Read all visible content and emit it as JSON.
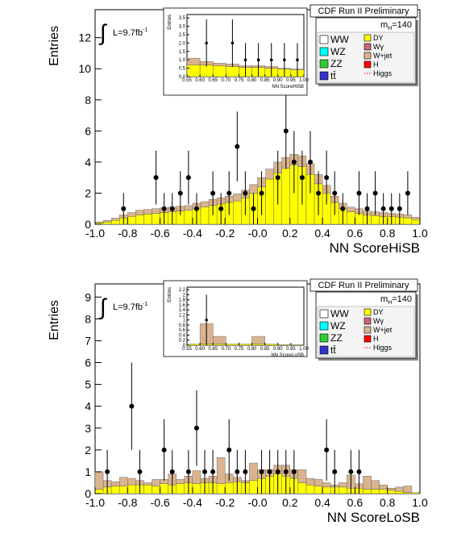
{
  "chart_data": [
    {
      "type": "histogram",
      "title": "CDF Run II Preliminary",
      "luminosity": "L=9.7fb",
      "luminosity_exponent": "-1",
      "mass_symbol": "m",
      "mass_subscript": "H",
      "mass_value": "=140",
      "xlabel": "NN ScoreHiSB",
      "ylabel": "Entries",
      "bins": [
        -1,
        -0.95,
        -0.9,
        -0.85,
        -0.8,
        -0.75,
        -0.7,
        -0.65,
        -0.6,
        -0.55,
        -0.5,
        -0.45,
        -0.4,
        -0.35,
        -0.3,
        -0.25,
        -0.2,
        -0.15,
        -0.1,
        -0.05,
        0,
        0.05,
        0.1,
        0.15,
        0.2,
        0.25,
        0.3,
        0.35,
        0.4,
        0.45,
        0.5,
        0.55,
        0.6,
        0.65,
        0.7,
        0.75,
        0.8,
        0.85,
        0.9,
        0.95,
        1
      ],
      "series": [
        {
          "name": "WW",
          "color": "#ffffff"
        },
        {
          "name": "WZ",
          "color": "#00ffff"
        },
        {
          "name": "ZZ",
          "color": "#33cc33"
        },
        {
          "name": "tt̄",
          "color": "#3333cc"
        },
        {
          "name": "DY",
          "color": "#ffff00",
          "values": [
            0.1,
            0.15,
            0.25,
            0.4,
            0.5,
            0.6,
            0.65,
            0.7,
            0.75,
            0.8,
            0.85,
            0.9,
            1.0,
            1.1,
            1.2,
            1.3,
            1.4,
            1.5,
            1.7,
            2.0,
            2.4,
            2.9,
            3.3,
            3.6,
            3.8,
            3.7,
            3.2,
            2.6,
            2.0,
            1.4,
            1.0,
            0.8,
            0.7,
            0.6,
            0.55,
            0.5,
            0.5,
            0.45,
            0.4,
            0.3
          ]
        },
        {
          "name": "Wγ",
          "color": "#cc6677"
        },
        {
          "name": "W+jet",
          "color": "#d9b48f",
          "values": [
            0.05,
            0.1,
            0.15,
            0.2,
            0.25,
            0.3,
            0.3,
            0.3,
            0.3,
            0.3,
            0.3,
            0.3,
            0.35,
            0.35,
            0.4,
            0.4,
            0.4,
            0.45,
            0.5,
            0.55,
            0.6,
            0.65,
            0.7,
            0.7,
            0.7,
            0.7,
            0.7,
            0.6,
            0.5,
            0.4,
            0.35,
            0.3,
            0.3,
            0.25,
            0.25,
            0.25,
            0.2,
            0.2,
            0.2,
            0.15
          ]
        },
        {
          "name": "H",
          "color": "#ff0000"
        },
        {
          "name": "Higgs",
          "color": "#ff0000"
        }
      ],
      "data": {
        "x": [
          -0.825,
          -0.625,
          -0.575,
          -0.525,
          -0.475,
          -0.425,
          -0.375,
          -0.275,
          -0.225,
          -0.175,
          -0.125,
          -0.075,
          -0.025,
          0.025,
          0.125,
          0.175,
          0.225,
          0.275,
          0.325,
          0.375,
          0.425,
          0.475,
          0.525,
          0.625,
          0.675,
          0.725,
          0.775,
          0.825,
          0.875,
          0.925
        ],
        "values": [
          1,
          3,
          1,
          1,
          2,
          3,
          1,
          2,
          1,
          2,
          5,
          2,
          1,
          2,
          3,
          6,
          4,
          3,
          4,
          2,
          3,
          2,
          1,
          2,
          1,
          2,
          1,
          1,
          1,
          2
        ],
        "errors": [
          1,
          1.73,
          1,
          1,
          1.41,
          1.73,
          1,
          1.41,
          1,
          1.41,
          2.24,
          1.41,
          1,
          1.41,
          1.73,
          2.45,
          2,
          1.73,
          2,
          1.41,
          1.73,
          1.41,
          1,
          1.41,
          1,
          1.41,
          1,
          1,
          1,
          1.41
        ]
      },
      "xlim": [
        -1,
        1
      ],
      "ylim": [
        0,
        13.8
      ],
      "xticks": [
        {
          "value": -1,
          "label": "-1.0"
        },
        -0.8,
        -0.6,
        -0.4,
        -0.2,
        {
          "value": 0,
          "label": "-0.0"
        },
        0.2,
        0.4,
        0.6,
        0.8,
        {
          "value": 1,
          "label": "1.0"
        }
      ],
      "yticks": [
        0,
        2,
        4,
        6,
        8,
        10,
        12
      ]
    },
    {
      "type": "histogram",
      "xlabel": "NN ScoreHiSB",
      "ylabel": "Entries",
      "bins": [
        0.55,
        0.6,
        0.65,
        0.7,
        0.75,
        0.8,
        0.85,
        0.9,
        0.95,
        1
      ],
      "series": [
        {
          "color": "#ffff00",
          "values": [
            0.7,
            0.7,
            0.65,
            0.6,
            0.55,
            0.55,
            0.5,
            0.45,
            0.4
          ]
        },
        {
          "color": "#d9b48f",
          "values": [
            0.4,
            0.2,
            0.15,
            0.15,
            0.1,
            0.1,
            0.1,
            0.05,
            0.05
          ]
        }
      ],
      "data": {
        "x": [
          0.625,
          0.725,
          0.775,
          0.825,
          0.875,
          0.925,
          0.975
        ],
        "values": [
          2,
          2,
          1,
          1,
          1,
          1,
          1
        ],
        "errors": [
          1.41,
          1.41,
          1,
          1,
          1,
          1,
          1
        ]
      },
      "xlim": [
        0.55,
        1
      ],
      "ylim": [
        0,
        3.7
      ],
      "xticks": [
        0.55,
        {
          "value": 0.6,
          "label": "0.60"
        },
        0.65,
        {
          "value": 0.7,
          "label": "0.70"
        },
        0.75,
        {
          "value": 0.8,
          "label": "0.80"
        },
        0.85,
        {
          "value": 0.9,
          "label": "0.90"
        },
        0.95,
        {
          "value": 1,
          "label": "1.00"
        }
      ],
      "yticks": [
        {
          "value": 0,
          "label": "0.0"
        },
        0.5,
        {
          "value": 1,
          "label": "1.0"
        },
        1.5,
        {
          "value": 2,
          "label": "2.0"
        },
        2.5,
        {
          "value": 3,
          "label": "3.0"
        },
        3.5
      ]
    },
    {
      "type": "histogram",
      "title": "CDF Run II Preliminary",
      "luminosity": "L=9.7fb",
      "luminosity_exponent": "-1",
      "mass_symbol": "m",
      "mass_subscript": "H",
      "mass_value": "=140",
      "xlabel": "NN ScoreLoSB",
      "ylabel": "Entries",
      "bins": [
        -1,
        -0.95,
        -0.9,
        -0.85,
        -0.8,
        -0.75,
        -0.7,
        -0.65,
        -0.6,
        -0.55,
        -0.5,
        -0.45,
        -0.4,
        -0.35,
        -0.3,
        -0.25,
        -0.2,
        -0.15,
        -0.1,
        -0.05,
        0,
        0.05,
        0.1,
        0.15,
        0.2,
        0.25,
        0.3,
        0.35,
        0.4,
        0.45,
        0.5,
        0.55,
        0.6,
        0.65,
        0.7,
        0.75,
        0.8,
        0.85,
        0.9,
        0.95,
        1
      ],
      "series": [
        {
          "name": "WW",
          "color": "#ffffff"
        },
        {
          "name": "WZ",
          "color": "#00ffff"
        },
        {
          "name": "ZZ",
          "color": "#33cc33"
        },
        {
          "name": "tt̄",
          "color": "#3333cc"
        },
        {
          "name": "DY",
          "color": "#ffff00",
          "values": [
            0.2,
            0.3,
            0.35,
            0.35,
            0.4,
            0.4,
            0.4,
            0.35,
            0.45,
            0.4,
            0.45,
            0.5,
            0.45,
            0.5,
            0.5,
            0.45,
            0.5,
            0.55,
            0.5,
            0.6,
            0.7,
            0.8,
            0.9,
            0.8,
            0.7,
            0.5,
            0.4,
            0.35,
            0.3,
            0.3,
            0.3,
            0.25,
            0.25,
            0.2,
            0.2,
            0.2,
            0.15,
            0.1,
            0.05,
            0.05
          ]
        },
        {
          "name": "Wγ",
          "color": "#cc6677"
        },
        {
          "name": "W+jet",
          "color": "#d9b48f",
          "values": [
            0.8,
            0.3,
            0.2,
            0.4,
            0.3,
            0.2,
            0.1,
            0.3,
            0.2,
            0.5,
            0.2,
            0.3,
            0.6,
            0.2,
            0.3,
            1.2,
            0.4,
            0.2,
            0.1,
            0.8,
            0.4,
            0.3,
            0.4,
            0.5,
            0.4,
            0.6,
            0.3,
            0.3,
            0.2,
            0.1,
            0.2,
            0.6,
            0.2,
            0.6,
            0.4,
            0.2,
            0.1,
            0.2,
            0.3,
            0
          ]
        },
        {
          "name": "H",
          "color": "#ff0000"
        },
        {
          "name": "Higgs",
          "color": "#ff0000"
        }
      ],
      "data": {
        "x": [
          -0.925,
          -0.775,
          -0.725,
          -0.575,
          -0.525,
          -0.425,
          -0.375,
          -0.325,
          -0.275,
          -0.175,
          -0.125,
          -0.075,
          0.025,
          0.075,
          0.125,
          0.175,
          0.225,
          0.425,
          0.475,
          0.575,
          0.625
        ],
        "values": [
          1,
          4,
          1,
          2,
          1,
          1,
          3,
          1,
          1,
          2,
          1,
          1,
          1,
          1,
          1,
          1,
          1,
          2,
          1,
          1,
          1
        ],
        "errors": [
          1,
          2,
          1,
          1.41,
          1,
          1,
          1.73,
          1,
          1,
          1.41,
          1,
          1,
          1,
          1,
          1,
          1,
          1,
          1.41,
          1,
          1,
          1
        ]
      },
      "xlim": [
        -1,
        1
      ],
      "ylim": [
        0,
        9.6
      ],
      "xticks": [
        {
          "value": -1,
          "label": "-1.0"
        },
        -0.8,
        -0.6,
        -0.4,
        -0.2,
        {
          "value": 0,
          "label": "-0.0"
        },
        0.2,
        0.4,
        0.6,
        0.8,
        {
          "value": 1,
          "label": "1.0"
        }
      ],
      "yticks": [
        0,
        1,
        2,
        3,
        4,
        5,
        6,
        7,
        8,
        9
      ]
    },
    {
      "type": "histogram",
      "xlabel": "NN ScoreLoSB",
      "ylabel": "Entries",
      "bins": [
        0.55,
        0.6,
        0.65,
        0.7,
        0.75,
        0.8,
        0.85,
        0.9,
        0.95,
        1
      ],
      "series": [
        {
          "color": "#ffff00",
          "values": [
            0.05,
            0.05,
            0.05,
            0.05,
            0.05,
            0.05,
            0.05,
            0.02,
            0.02
          ]
        },
        {
          "color": "#d9b48f",
          "values": [
            0,
            0.8,
            0.3,
            0,
            0,
            0.3,
            0,
            0,
            0
          ]
        }
      ],
      "data": {
        "x": [
          0.625
        ],
        "values": [
          1
        ],
        "errors": [
          1
        ]
      },
      "xlim": [
        0.55,
        1
      ],
      "ylim": [
        0,
        2.3
      ],
      "xticks": [
        0.55,
        {
          "value": 0.6,
          "label": "0.60"
        },
        0.65,
        {
          "value": 0.7,
          "label": "0.70"
        },
        0.75,
        {
          "value": 0.8,
          "label": "0.80"
        },
        0.85,
        {
          "value": 0.9,
          "label": "0.90"
        },
        0.95,
        {
          "value": 1,
          "label": "1.00"
        }
      ],
      "yticks": [
        0,
        0.2,
        0.4,
        0.6,
        0.8,
        1,
        1.2,
        1.4,
        1.6,
        1.8,
        2,
        2.2
      ]
    }
  ]
}
